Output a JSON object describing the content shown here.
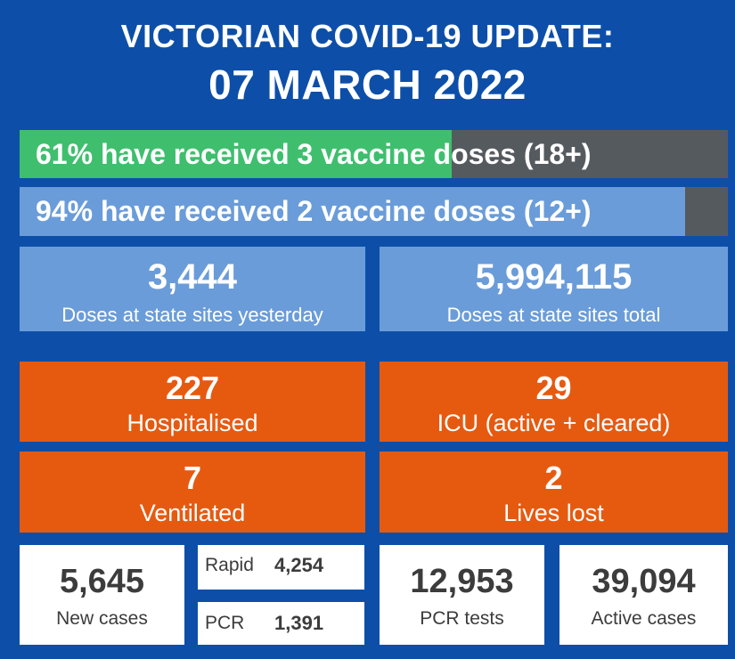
{
  "header": {
    "line1": "VICTORIAN COVID-19 UPDATE:",
    "line2": "07 MARCH 2022"
  },
  "vaccination": [
    {
      "text": "61% have received 3 vaccine doses (18+)",
      "percent": 61,
      "color": "#3fbf6e"
    },
    {
      "text": "94% have received 2 vaccine doses (12+)",
      "percent": 94,
      "color": "#6a9cd9"
    }
  ],
  "doses": {
    "yesterday": {
      "value": "3,444",
      "label": "Doses at state sites yesterday"
    },
    "total": {
      "value": "5,994,115",
      "label": "Doses at state sites total"
    }
  },
  "hospital": {
    "hospitalised": {
      "value": "227",
      "label": "Hospitalised"
    },
    "icu": {
      "value": "29",
      "label": "ICU (active + cleared)"
    },
    "ventilated": {
      "value": "7",
      "label": "Ventilated"
    },
    "lives_lost": {
      "value": "2",
      "label": "Lives lost"
    }
  },
  "cases": {
    "new_cases": {
      "value": "5,645",
      "label": "New cases"
    },
    "rapid": {
      "label": "Rapid",
      "value": "4,254"
    },
    "pcr": {
      "label": "PCR",
      "value": "1,391"
    },
    "pcr_tests": {
      "value": "12,953",
      "label": "PCR tests"
    },
    "active_cases": {
      "value": "39,094",
      "label": "Active cases"
    }
  },
  "colors": {
    "background": "#0d4fa8",
    "green": "#3fbf6e",
    "light_blue": "#6a9cd9",
    "orange": "#e65a10",
    "grey": "#555a5f"
  }
}
